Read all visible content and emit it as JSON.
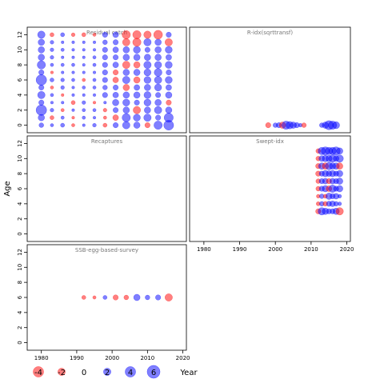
{
  "axes": {
    "ylabel": "Age",
    "xlabel": "Year"
  },
  "legend": {
    "entries": [
      {
        "label": "-4",
        "value": -4
      },
      {
        "label": "-2",
        "value": -2
      },
      {
        "label": "0",
        "value": 0
      },
      {
        "label": "2",
        "value": 2
      },
      {
        "label": "4",
        "value": 4
      },
      {
        "label": "6",
        "value": 6
      }
    ]
  },
  "colors": {
    "positive": "#0000ff",
    "negative": "#ff0000"
  },
  "chart_data": [
    {
      "type": "scatter",
      "encoding": "bubble size = |residual|, color = sign",
      "title": "Residual catch",
      "xlim": [
        1976,
        2021
      ],
      "ylim": [
        -1,
        13
      ],
      "yticks": [
        0,
        2,
        4,
        6,
        8,
        10,
        12
      ],
      "xticks": [],
      "x": [
        1980,
        1983,
        1986,
        1989,
        1992,
        1995,
        1998,
        2001,
        2004,
        2007,
        2010,
        2013,
        2016
      ],
      "ages": [
        0,
        1,
        2,
        3,
        4,
        5,
        6,
        7,
        8,
        9,
        10,
        11,
        12
      ],
      "values": [
        [
          0.8,
          0.4,
          0.6,
          -0.4,
          0.3,
          0.5,
          -0.6,
          1.0,
          2.0,
          1.5,
          -1.0,
          2.5,
          3.5
        ],
        [
          1.5,
          -0.6,
          0.4,
          -0.3,
          0.4,
          0.3,
          -0.4,
          -1.2,
          2.5,
          1.8,
          2.0,
          1.0,
          3.0
        ],
        [
          4.0,
          0.5,
          -0.4,
          0.3,
          0.4,
          0.4,
          -0.5,
          1.0,
          1.5,
          -2.0,
          1.5,
          2.0,
          1.5
        ],
        [
          1.0,
          0.3,
          0.3,
          -0.6,
          0.5,
          -0.3,
          0.3,
          1.5,
          1.8,
          1.0,
          1.8,
          1.5,
          -1.0
        ],
        [
          2.0,
          0.4,
          -0.3,
          0.3,
          0.3,
          0.3,
          1.0,
          1.2,
          1.5,
          1.5,
          1.8,
          1.0,
          1.5
        ],
        [
          1.0,
          -0.4,
          0.5,
          0.3,
          0.4,
          0.4,
          0.8,
          1.0,
          -1.5,
          1.2,
          1.5,
          1.8,
          1.2
        ],
        [
          4.0,
          0.6,
          0.5,
          0.4,
          -0.4,
          0.4,
          1.0,
          -1.2,
          2.0,
          -1.5,
          1.8,
          2.0,
          1.8
        ],
        [
          1.0,
          -0.3,
          0.3,
          0.3,
          0.3,
          0.3,
          1.0,
          -1.0,
          1.5,
          1.5,
          1.8,
          2.2,
          1.0
        ],
        [
          2.5,
          0.4,
          0.4,
          0.4,
          0.3,
          0.4,
          1.0,
          1.2,
          -2.0,
          -1.5,
          2.0,
          1.8,
          1.8
        ],
        [
          1.5,
          0.5,
          0.3,
          0.3,
          0.3,
          0.4,
          1.0,
          1.0,
          1.5,
          1.5,
          1.5,
          1.5,
          1.2
        ],
        [
          1.5,
          0.5,
          0.4,
          0.3,
          0.3,
          0.3,
          1.0,
          1.2,
          1.5,
          1.8,
          1.0,
          1.5,
          1.8
        ],
        [
          1.5,
          0.5,
          0.3,
          0.3,
          0.3,
          0.3,
          0.8,
          1.0,
          -2.0,
          -2.5,
          2.0,
          1.5,
          -2.0
        ],
        [
          2.0,
          -0.6,
          0.6,
          -0.5,
          -0.6,
          -0.4,
          1.0,
          1.2,
          -2.5,
          -2.5,
          -2.0,
          -2.8,
          1.0
        ]
      ]
    },
    {
      "type": "scatter",
      "encoding": "bubble size = |residual|, color = sign",
      "title": "R-idx(sqrttransf)",
      "xlim": [
        1976,
        2021
      ],
      "ylim": [
        -1,
        13
      ],
      "yticks": [],
      "xticks": [],
      "x": [
        1998,
        2000,
        2001,
        2002,
        2003,
        2004,
        2005,
        2006,
        2007,
        2008,
        2013,
        2014,
        2015,
        2016,
        2017
      ],
      "ages": [
        0
      ],
      "values": [
        [
          -1.0,
          0.8,
          1.0,
          -1.5,
          2.5,
          2.0,
          1.5,
          1.0,
          0.5,
          -0.8,
          0.8,
          1.5,
          3.0,
          2.5,
          1.8
        ]
      ]
    },
    {
      "type": "scatter",
      "title": "Recaptures",
      "xlim": [
        1976,
        2021
      ],
      "ylim": [
        -1,
        13
      ],
      "yticks": [
        0,
        2,
        4,
        6,
        8,
        10,
        12
      ],
      "xticks": [],
      "x": [],
      "ages": [],
      "values": []
    },
    {
      "type": "scatter",
      "encoding": "bubble size = |residual|, color = sign",
      "title": "Swept-idx",
      "xlim": [
        1976,
        2021
      ],
      "ylim": [
        -1,
        13
      ],
      "yticks": [],
      "xticks": [
        1980,
        1990,
        2000,
        2010,
        2020
      ],
      "x": [
        2012,
        2013,
        2014,
        2015,
        2016,
        2017,
        2018
      ],
      "ages": [
        3,
        4,
        5,
        6,
        7,
        8,
        9,
        10,
        11
      ],
      "values": [
        [
          -1.0,
          2.0,
          1.5,
          1.0,
          1.0,
          1.5,
          -2.0
        ],
        [
          -0.6,
          0.8,
          -0.8,
          1.0,
          1.2,
          0.8,
          0.5
        ],
        [
          -0.5,
          0.8,
          -0.6,
          1.5,
          1.0,
          1.2,
          0.5
        ],
        [
          -0.8,
          1.0,
          1.5,
          -1.2,
          2.0,
          1.0,
          1.5
        ],
        [
          -0.8,
          1.0,
          1.2,
          -1.0,
          1.2,
          1.0,
          1.5
        ],
        [
          -1.0,
          1.0,
          1.5,
          1.2,
          1.5,
          1.0,
          1.5
        ],
        [
          -1.0,
          1.5,
          -1.5,
          2.0,
          1.5,
          1.5,
          -1.5
        ],
        [
          -0.8,
          1.2,
          1.5,
          1.5,
          2.0,
          1.2,
          2.0
        ],
        [
          -0.8,
          2.0,
          2.5,
          2.0,
          2.0,
          2.5,
          1.5
        ]
      ]
    },
    {
      "type": "scatter",
      "encoding": "bubble size = |residual|, color = sign",
      "title": "SSB-egg-based-survey",
      "xlim": [
        1976,
        2021
      ],
      "ylim": [
        -1,
        13
      ],
      "yticks": [
        0,
        2,
        4,
        6,
        8,
        10,
        12
      ],
      "xticks": [
        1980,
        1990,
        2000,
        2010,
        2020
      ],
      "x": [
        1992,
        1995,
        1998,
        2001,
        2004,
        2007,
        2010,
        2013,
        2016
      ],
      "ages": [
        6
      ],
      "values": [
        [
          -0.6,
          -0.4,
          0.6,
          -1.0,
          -0.8,
          1.5,
          0.8,
          1.0,
          -2.0
        ]
      ]
    }
  ]
}
